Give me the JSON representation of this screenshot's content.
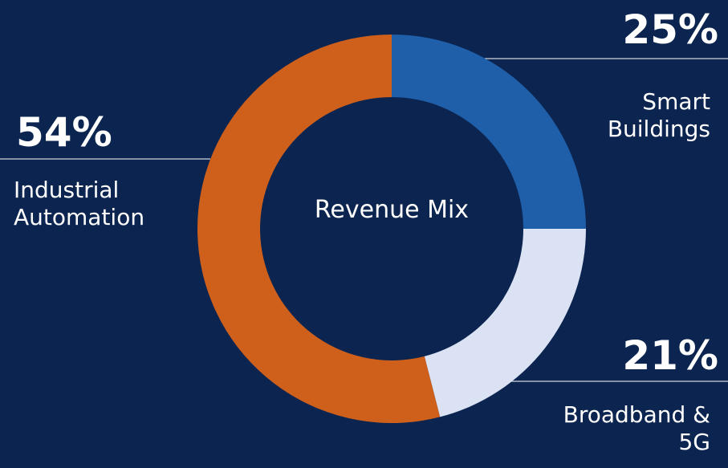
{
  "chart_data": {
    "type": "donut",
    "center_label": "Revenue Mix",
    "categories": [
      "Smart Buildings",
      "Broadband & 5G",
      "Industrial Automation"
    ],
    "values": [
      25,
      21,
      54
    ],
    "value_labels": [
      "25%",
      "21%",
      "54%"
    ],
    "colors": [
      "#1f5ea8",
      "#dae2f3",
      "#cf601c"
    ]
  }
}
